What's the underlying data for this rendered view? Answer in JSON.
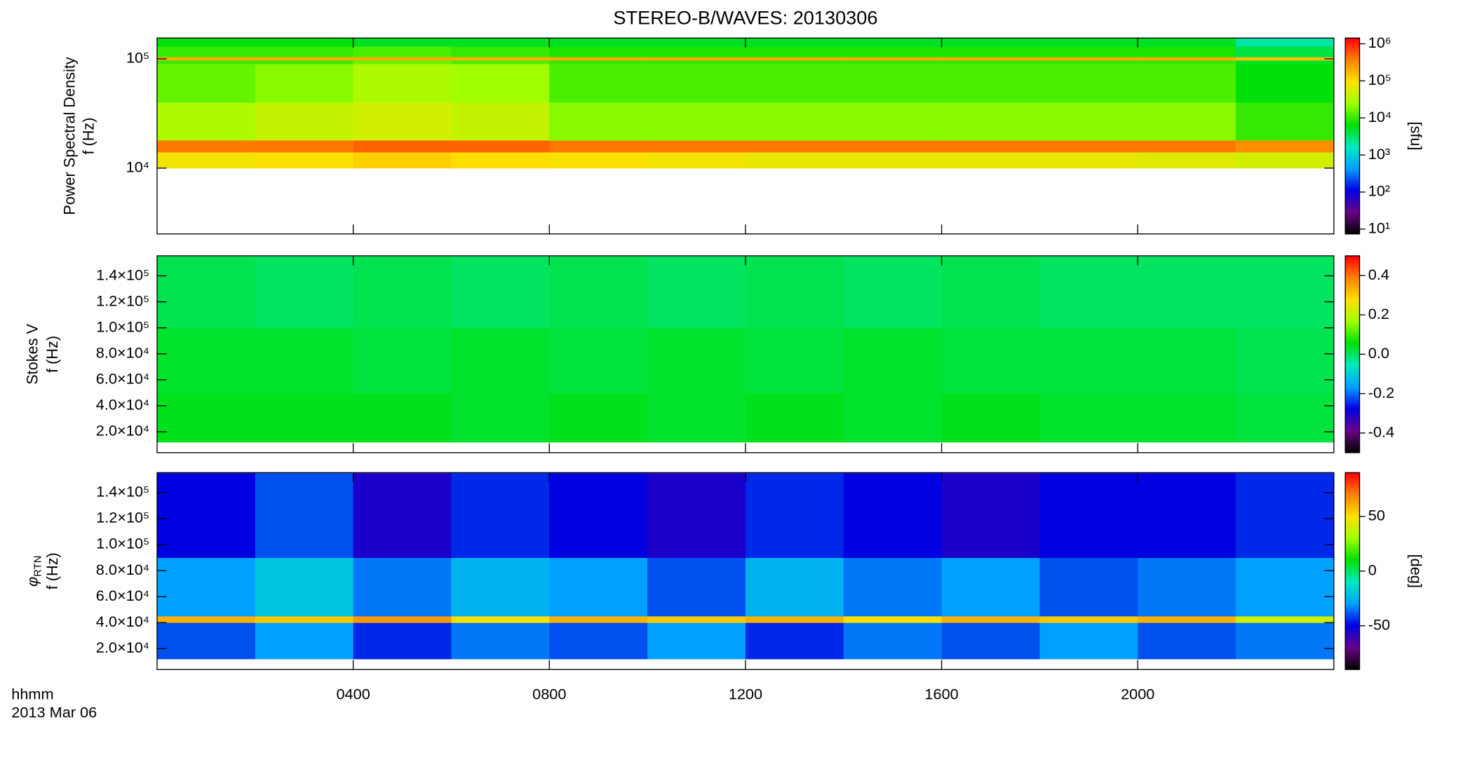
{
  "chart_data": [
    {
      "type": "heatmap",
      "title": "STEREO-B/WAVES: 20130306",
      "ylabel": "Power Spectral Density",
      "ylabel2": "f (Hz)",
      "ylog": true,
      "ylim": [
        2500,
        155000
      ],
      "yticks": [
        {
          "value": 10000,
          "label": "10⁴"
        },
        {
          "value": 100000,
          "label": "10⁵"
        }
      ],
      "xlim": [
        0,
        24
      ],
      "x_edges": [
        0,
        2,
        4,
        6,
        8,
        10,
        12,
        14,
        16,
        18,
        20,
        22,
        24
      ],
      "y_edges": [
        10000,
        14000,
        18000,
        40000,
        90000,
        97000,
        104000,
        130000,
        155000
      ],
      "z": [
        [
          80000,
          90000,
          120000,
          100000,
          90000,
          80000,
          70000,
          70000,
          70000,
          70000,
          60000,
          50000
        ],
        [
          400000,
          400000,
          500000,
          500000,
          400000,
          400000,
          400000,
          400000,
          400000,
          400000,
          400000,
          300000
        ],
        [
          30000,
          40000,
          50000,
          40000,
          20000,
          20000,
          20000,
          20000,
          20000,
          20000,
          20000,
          10000
        ],
        [
          15000,
          20000,
          30000,
          25000,
          12000,
          12000,
          12000,
          12000,
          12000,
          12000,
          12000,
          6000
        ],
        [
          10000,
          10000,
          15000,
          12000,
          10000,
          10000,
          10000,
          10000,
          10000,
          10000,
          10000,
          5000
        ],
        [
          200000,
          200000,
          200000,
          200000,
          200000,
          200000,
          200000,
          200000,
          200000,
          200000,
          200000,
          150000
        ],
        [
          10000,
          10000,
          12000,
          10000,
          8000,
          8000,
          8000,
          8000,
          8000,
          8000,
          8000,
          4000
        ],
        [
          6000,
          6000,
          5000,
          5000,
          5000,
          5000,
          5000,
          5000,
          5000,
          5000,
          5000,
          2000
        ]
      ],
      "zlog": true,
      "zlim": [
        7.4,
        1430000
      ],
      "zticks": [
        {
          "value": 10,
          "label": "10¹"
        },
        {
          "value": 100,
          "label": "10²"
        },
        {
          "value": 1000,
          "label": "10³"
        },
        {
          "value": 10000,
          "label": "10⁴"
        },
        {
          "value": 100000,
          "label": "10⁵"
        },
        {
          "value": 1000000,
          "label": "10⁶"
        }
      ],
      "zlabel": "[sfu]",
      "colormap": [
        "#000000",
        "#6a008a",
        "#0000e0",
        "#00a0ff",
        "#00e8c0",
        "#00e000",
        "#a0ff00",
        "#ffe000",
        "#ff8000",
        "#ff0000"
      ]
    },
    {
      "type": "heatmap",
      "ylabel": "Stokes V",
      "ylabel2": "f (Hz)",
      "ylog": false,
      "ylim": [
        3900,
        155400
      ],
      "yticks": [
        {
          "value": 20000,
          "label": "2.0×10⁴"
        },
        {
          "value": 40000,
          "label": "4.0×10⁴"
        },
        {
          "value": 60000,
          "label": "6.0×10⁴"
        },
        {
          "value": 80000,
          "label": "8.0×10⁴"
        },
        {
          "value": 100000,
          "label": "1.0×10⁵"
        },
        {
          "value": 120000,
          "label": "1.2×10⁵"
        },
        {
          "value": 140000,
          "label": "1.4×10⁵"
        }
      ],
      "xlim": [
        0,
        24
      ],
      "x_edges": [
        0,
        2,
        4,
        6,
        8,
        10,
        12,
        14,
        16,
        18,
        20,
        22,
        24
      ],
      "y_edges": [
        12000,
        50000,
        100000,
        155000
      ],
      "z": [
        [
          0.04,
          0.04,
          0.04,
          0.03,
          0.04,
          0.03,
          0.04,
          0.03,
          0.04,
          0.03,
          0.03,
          0.02
        ],
        [
          0.03,
          0.03,
          0.02,
          0.03,
          0.02,
          0.03,
          0.02,
          0.03,
          0.02,
          0.02,
          0.02,
          0.01
        ],
        [
          0.01,
          0.0,
          0.01,
          0.0,
          0.01,
          0.0,
          0.01,
          0.0,
          0.01,
          0.0,
          0.0,
          0.0
        ]
      ],
      "zlog": false,
      "zlim": [
        -0.5,
        0.5
      ],
      "zticks": [
        -0.4,
        -0.2,
        {
          "value": 0,
          "label": "0.0"
        },
        0.2,
        0.4
      ],
      "colormap": [
        "#000000",
        "#6a008a",
        "#0000e0",
        "#00a0ff",
        "#00e8c0",
        "#00e000",
        "#a0ff00",
        "#ffe000",
        "#ff8000",
        "#ff0000"
      ]
    },
    {
      "type": "heatmap",
      "ylabel": "φ",
      "ylabel_sub": "RTN",
      "ylabel2": "f (Hz)",
      "ylog": false,
      "ylim": [
        3900,
        155400
      ],
      "yticks": [
        {
          "value": 20000,
          "label": "2.0×10⁴"
        },
        {
          "value": 40000,
          "label": "4.0×10⁴"
        },
        {
          "value": 60000,
          "label": "6.0×10⁴"
        },
        {
          "value": 80000,
          "label": "8.0×10⁴"
        },
        {
          "value": 100000,
          "label": "1.0×10⁵"
        },
        {
          "value": 120000,
          "label": "1.2×10⁵"
        },
        {
          "value": 140000,
          "label": "1.4×10⁵"
        }
      ],
      "xlim": [
        0,
        24
      ],
      "xticks": [
        {
          "value": 4,
          "label": "0400"
        },
        {
          "value": 8,
          "label": "0800"
        },
        {
          "value": 12,
          "label": "1200"
        },
        {
          "value": 16,
          "label": "1600"
        },
        {
          "value": 20,
          "label": "2000"
        }
      ],
      "xlabel": "hhmm",
      "date": "2013 Mar 06",
      "x_edges": [
        0,
        2,
        4,
        6,
        8,
        10,
        12,
        14,
        16,
        18,
        20,
        22,
        24
      ],
      "y_edges": [
        12000,
        40000,
        45000,
        90000,
        155000
      ],
      "z": [
        [
          -40,
          -30,
          -45,
          -35,
          -40,
          -30,
          -45,
          -35,
          -40,
          -30,
          -40,
          -35
        ],
        [
          60,
          55,
          65,
          50,
          60,
          55,
          60,
          50,
          60,
          55,
          60,
          40
        ],
        [
          -30,
          -20,
          -35,
          -25,
          -30,
          -40,
          -25,
          -35,
          -30,
          -40,
          -35,
          -30
        ],
        [
          -50,
          -40,
          -55,
          -45,
          -50,
          -55,
          -45,
          -50,
          -55,
          -50,
          -50,
          -45
        ]
      ],
      "zlog": false,
      "zlim": [
        -90,
        90
      ],
      "zticks": [
        -50,
        0,
        50
      ],
      "zlabel": "[deg]",
      "colormap": [
        "#000000",
        "#6a008a",
        "#0000e0",
        "#00a0ff",
        "#00e8c0",
        "#00e000",
        "#a0ff00",
        "#ffe000",
        "#ff8000",
        "#ff0000"
      ]
    }
  ]
}
